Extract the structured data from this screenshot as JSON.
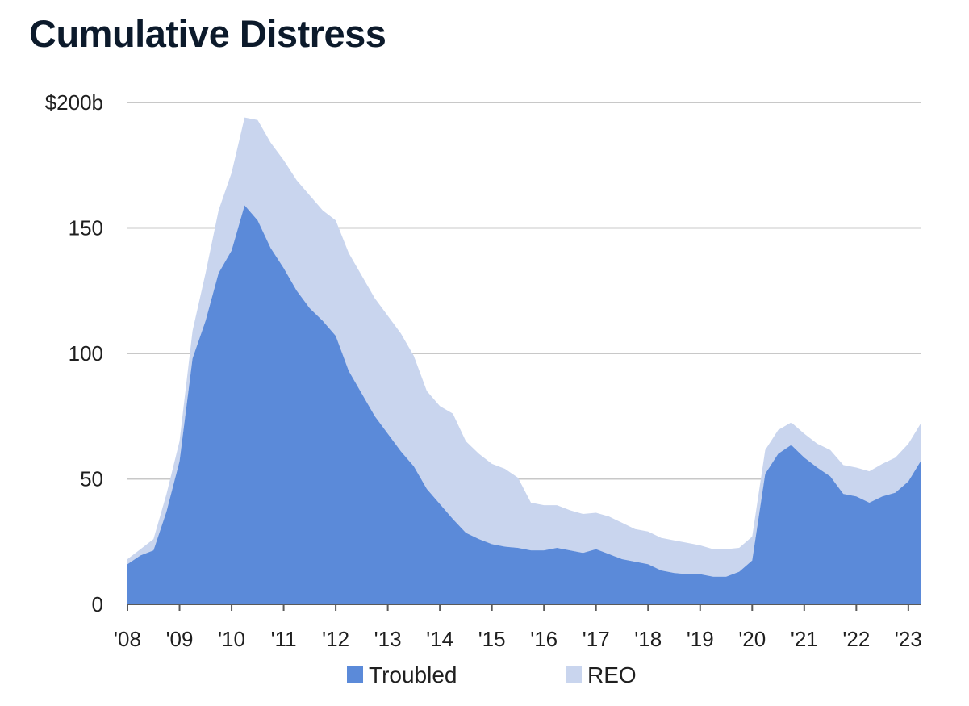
{
  "chart_data": {
    "type": "area",
    "stacked": true,
    "title": "Cumulative Distress",
    "y_tick_labels": [
      "0",
      "50",
      "100",
      "150",
      "$200b"
    ],
    "y_ticks": [
      0,
      50,
      100,
      150,
      200
    ],
    "ylim": [
      0,
      200
    ],
    "x_tick_labels": [
      "'08",
      "'09",
      "'10",
      "'11",
      "'12",
      "'13",
      "'14",
      "'15",
      "'16",
      "'17",
      "'18",
      "'19",
      "'20",
      "'21",
      "'22",
      "'23"
    ],
    "x_start_year": 2008,
    "x_step_years": 0.25,
    "grid": true,
    "legend_position": "bottom",
    "colors": {
      "troubled": "#5b8ad9",
      "reo": "#c9d5ee",
      "grid": "#c8c8c8",
      "axis": "#5a5a5a"
    },
    "series": [
      {
        "name": "Troubled",
        "values": [
          16,
          19.5,
          21.5,
          37,
          57,
          98,
          113,
          132,
          141,
          159,
          153,
          142,
          134,
          125,
          118,
          113,
          107,
          93,
          84,
          75,
          68,
          61,
          55,
          46,
          40,
          34,
          28.5,
          26,
          24,
          23,
          22.5,
          21.5,
          21.5,
          22.5,
          21.5,
          20.5,
          22,
          20,
          18,
          17,
          16,
          13.5,
          12.5,
          12,
          12,
          11,
          11,
          13,
          17.5,
          52,
          60,
          63.5,
          58.5,
          54.5,
          51,
          44,
          43,
          40.5,
          43,
          44.5,
          49,
          57.5
        ]
      },
      {
        "name": "REO",
        "values": [
          2,
          2.5,
          4.5,
          7,
          8,
          11,
          19,
          25,
          31,
          35,
          40,
          42,
          43,
          44,
          45,
          44,
          46,
          47,
          47,
          47,
          47,
          47,
          44,
          39,
          39,
          42,
          36.5,
          34,
          32,
          31,
          28,
          19,
          18,
          17,
          16,
          15.5,
          14.5,
          15,
          14.5,
          13,
          13,
          13,
          13,
          12.5,
          11.5,
          11,
          11,
          9.5,
          9.5,
          9.5,
          9.5,
          9,
          9.5,
          9.5,
          10.5,
          11.5,
          11.5,
          12.5,
          13,
          14,
          15,
          15
        ]
      }
    ]
  }
}
